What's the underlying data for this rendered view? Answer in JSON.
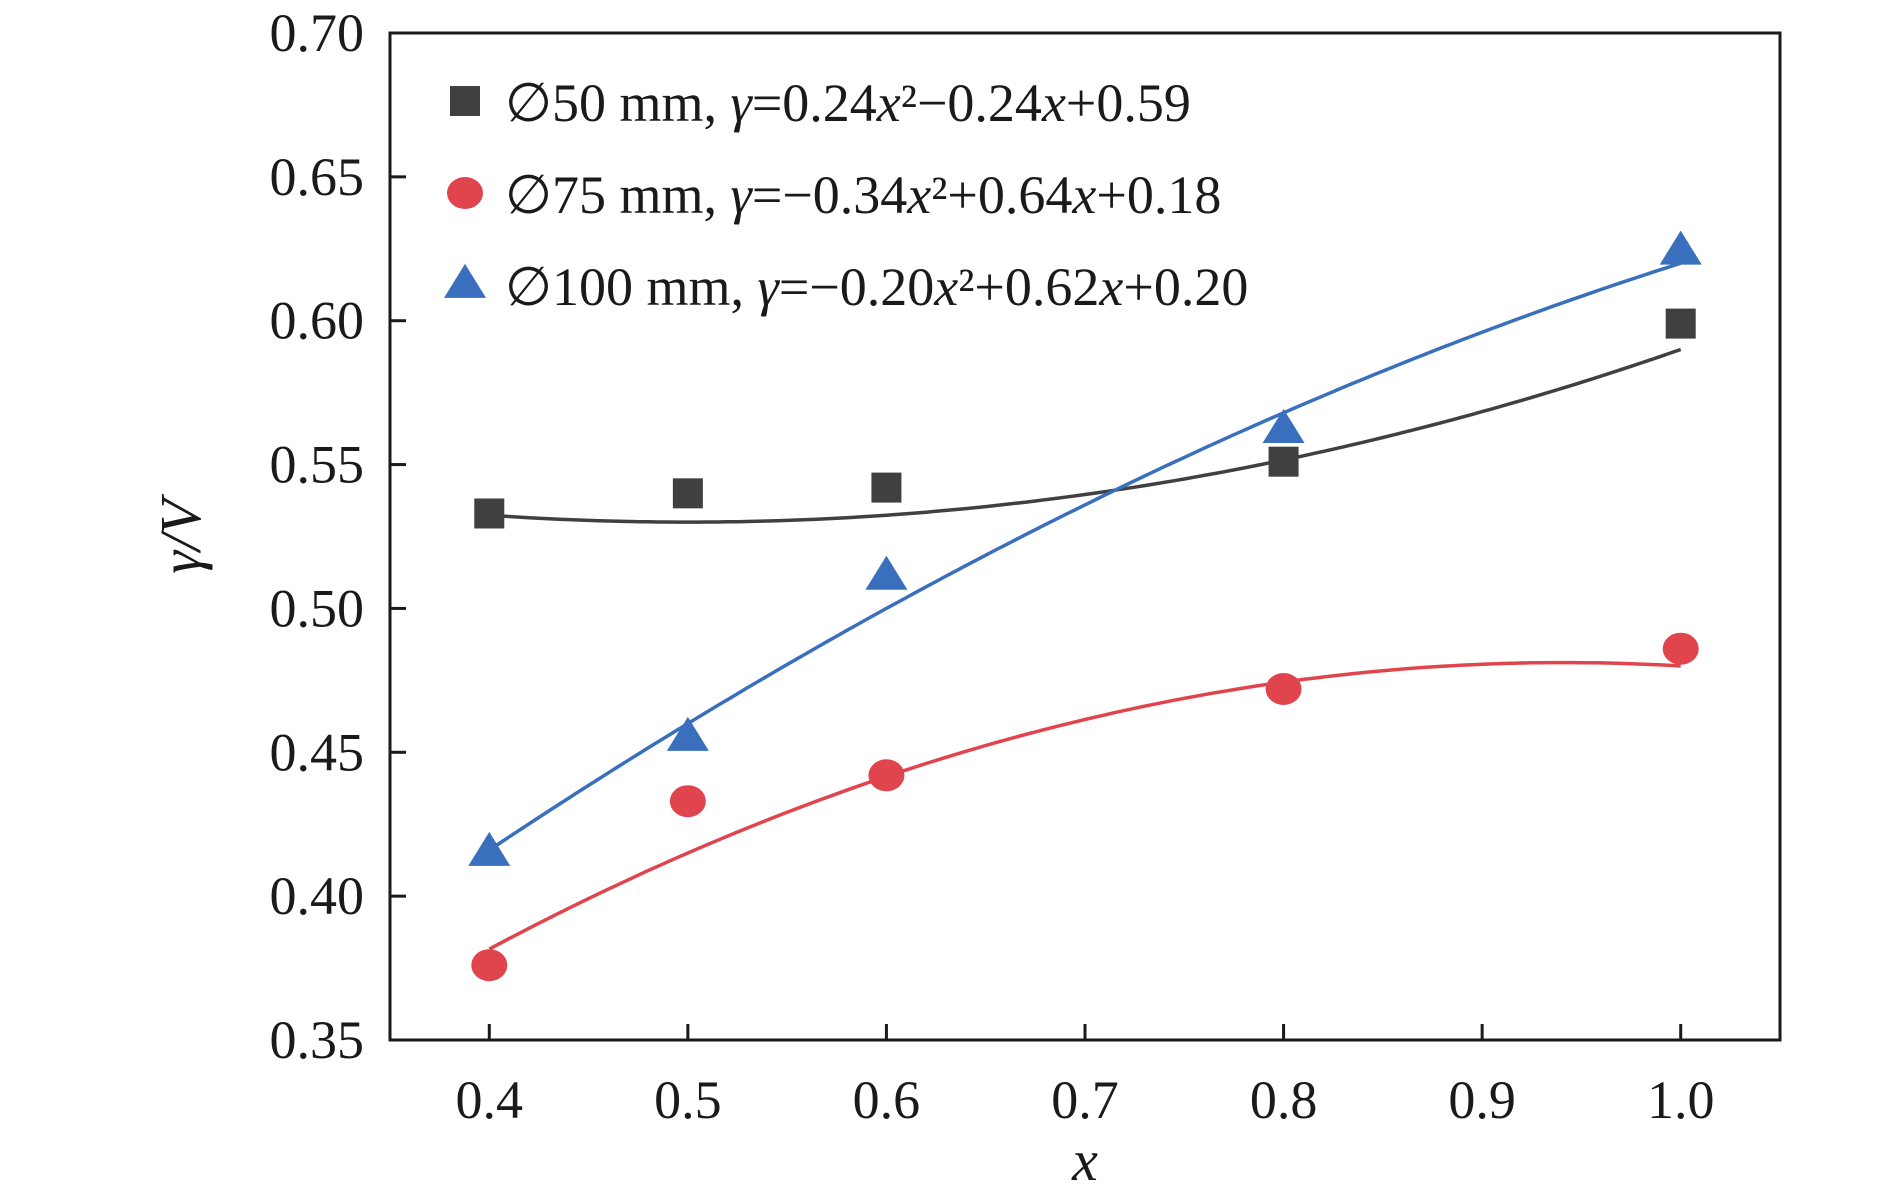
{
  "chart_data": {
    "type": "scatter",
    "title": "",
    "xlabel": "x",
    "ylabel": "γ/V",
    "xlim": [
      0.35,
      1.05
    ],
    "ylim": [
      0.35,
      0.7
    ],
    "x_ticks": [
      "0.4",
      "0.5",
      "0.6",
      "0.7",
      "0.8",
      "0.9",
      "1.0"
    ],
    "y_ticks": [
      "0.35",
      "0.40",
      "0.45",
      "0.50",
      "0.55",
      "0.60",
      "0.65",
      "0.70"
    ],
    "grid": false,
    "legend_position": "top-left",
    "series": [
      {
        "name": "∅50 mm, γ=0.24x²−0.24x+0.59",
        "label_parts": [
          "∅50 mm, ",
          "γ",
          "=0.24",
          "x",
          "²",
          "−0.24",
          "x",
          "+0.59"
        ],
        "marker": "square",
        "color": "#404040",
        "x": [
          0.4,
          0.5,
          0.6,
          0.8,
          1.0
        ],
        "y": [
          0.533,
          0.54,
          0.542,
          0.551,
          0.599
        ],
        "fit": [
          0.24,
          -0.24,
          0.59
        ]
      },
      {
        "name": "∅75 mm, γ=−0.34x²+0.64x+0.18",
        "label_parts": [
          "∅75 mm, ",
          "γ",
          "=−0.34",
          "x",
          "²",
          "+0.64",
          "x",
          "+0.18"
        ],
        "marker": "circle",
        "color": "#e0454e",
        "x": [
          0.4,
          0.5,
          0.6,
          0.8,
          1.0
        ],
        "y": [
          0.376,
          0.433,
          0.442,
          0.472,
          0.486
        ],
        "fit": [
          -0.34,
          0.64,
          0.18
        ]
      },
      {
        "name": "∅100 mm, γ=−0.20x²+0.62x+0.20",
        "label_parts": [
          "∅100 mm, ",
          "γ",
          "=−0.20",
          "x",
          "²",
          "+0.62",
          "x",
          "+0.20"
        ],
        "marker": "triangle",
        "color": "#3a6fbd",
        "x": [
          0.4,
          0.5,
          0.6,
          0.8,
          1.0
        ],
        "y": [
          0.415,
          0.455,
          0.511,
          0.562,
          0.624
        ],
        "fit": [
          -0.2,
          0.62,
          0.2
        ]
      }
    ]
  }
}
